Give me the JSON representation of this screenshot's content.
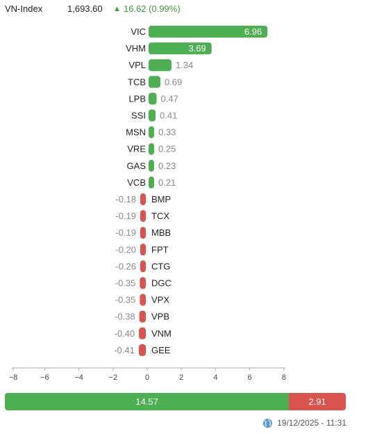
{
  "header": {
    "index_name": "VN-Index",
    "index_value": "1,693.60",
    "arrow": "▲",
    "change": "16.62 (0.99%)"
  },
  "chart_data": {
    "type": "bar",
    "orientation": "horizontal",
    "title": "",
    "xlabel": "",
    "ylabel": "",
    "xlim": [
      -8,
      8
    ],
    "x_ticks": [
      -8,
      -6,
      -4,
      -2,
      0,
      2,
      4,
      6,
      8
    ],
    "x_tick_labels": [
      "−8",
      "−6",
      "−4",
      "−2",
      "0",
      "2",
      "4",
      "6",
      "8"
    ],
    "categories": [
      "VIC",
      "VHM",
      "VPL",
      "TCB",
      "LPB",
      "SSI",
      "MSN",
      "VRE",
      "GAS",
      "VCB",
      "BMP",
      "TCX",
      "MBB",
      "FPT",
      "CTG",
      "DGC",
      "VPX",
      "VPB",
      "VNM",
      "GEE"
    ],
    "values": [
      6.96,
      3.69,
      1.34,
      0.69,
      0.47,
      0.41,
      0.33,
      0.25,
      0.23,
      0.21,
      -0.18,
      -0.19,
      -0.19,
      -0.2,
      -0.26,
      -0.35,
      -0.35,
      -0.38,
      -0.4,
      -0.41
    ],
    "value_labels": [
      "6.96",
      "3.69",
      "1.34",
      "0.69",
      "0.47",
      "0.41",
      "0.33",
      "0.25",
      "0.23",
      "0.21",
      "-0.18",
      "-0.19",
      "-0.19",
      "-0.20",
      "-0.26",
      "-0.35",
      "-0.35",
      "-0.38",
      "-0.40",
      "-0.41"
    ],
    "grid": false,
    "colors": {
      "positive": "#4caf50",
      "negative": "#d9534f",
      "label": "#888888",
      "category": "#222222"
    }
  },
  "summary": {
    "up_value": 14.57,
    "down_value": 2.91,
    "up_label": "14.57",
    "down_label": "2.91"
  },
  "footer": {
    "icon": "globe-icon",
    "timestamp": "19/12/2025 - 11:31"
  }
}
